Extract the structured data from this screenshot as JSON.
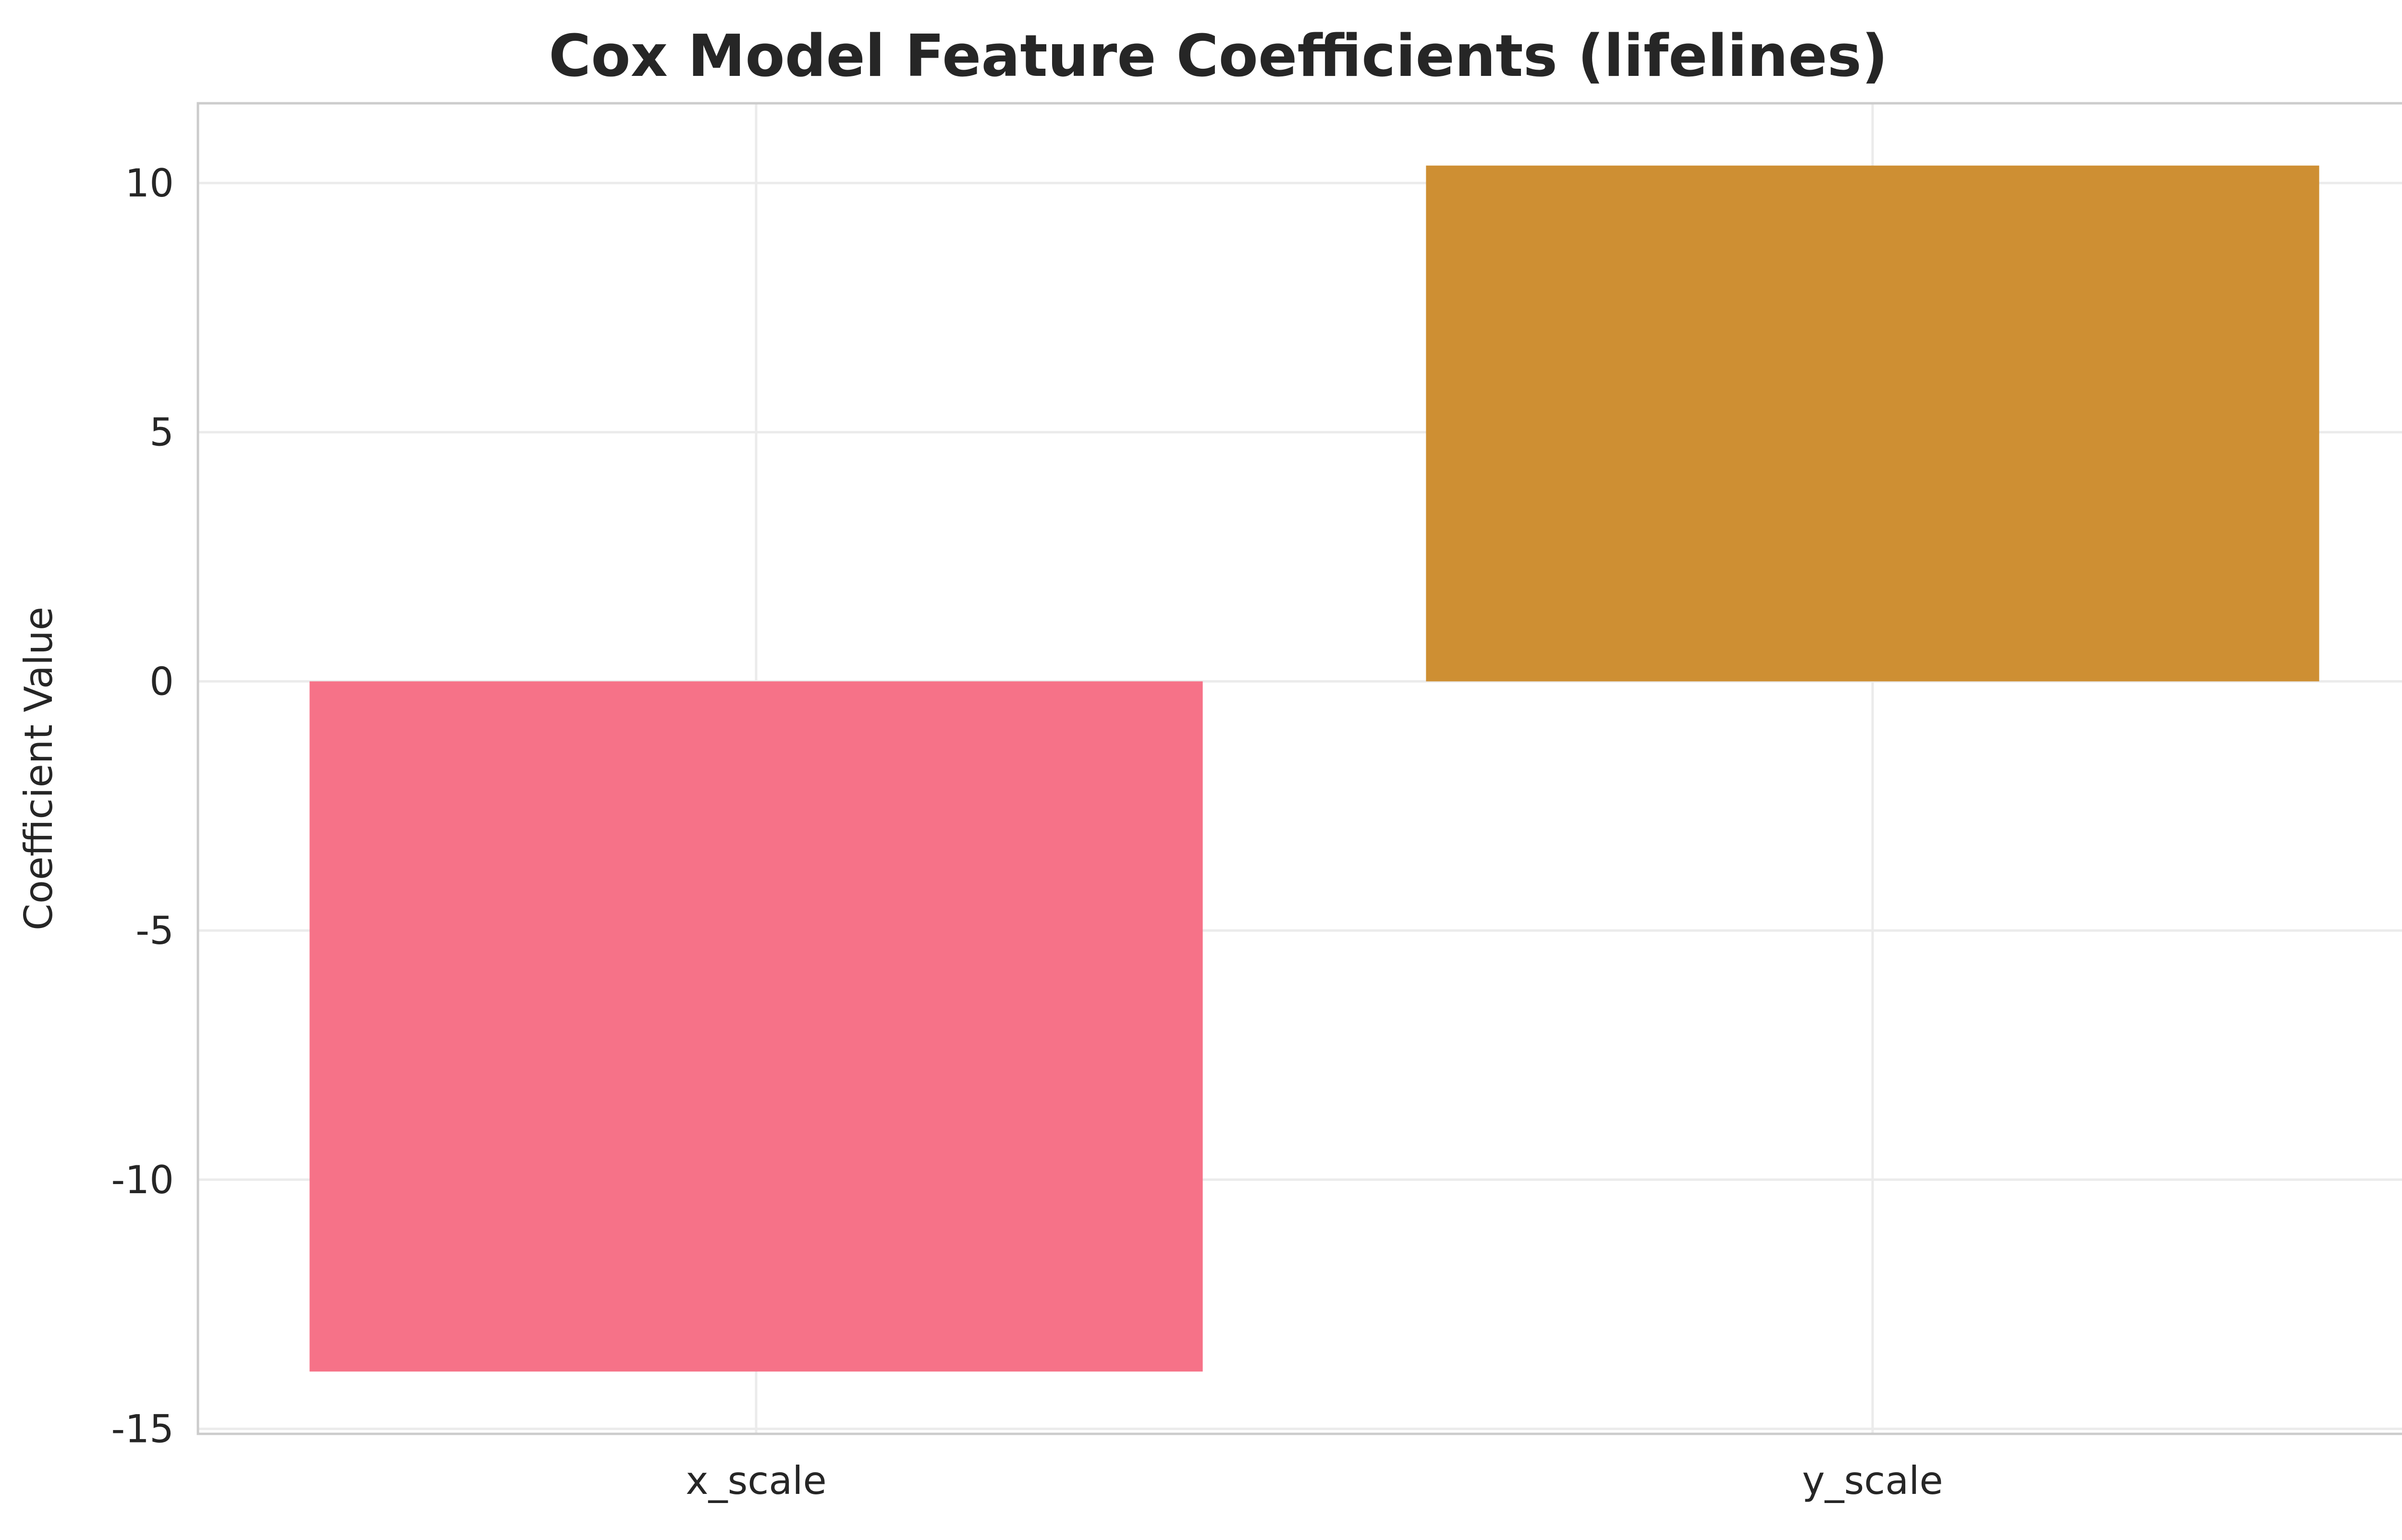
{
  "chart_data": {
    "type": "bar",
    "title": "Cox Model Feature Coefficients (lifelines)",
    "xlabel": "",
    "ylabel": "Coefficient Value",
    "categories": [
      "x_scale",
      "y_scale"
    ],
    "values": [
      -13.85,
      10.35
    ],
    "colors": [
      "#f67288",
      "#ce8f33"
    ],
    "ylim": [
      -15.1,
      11.6
    ],
    "yticks": [
      -15,
      -10,
      -5,
      0,
      5,
      10
    ],
    "ytick_labels": [
      "-15",
      "-10",
      "-5",
      "0",
      "5",
      "10"
    ],
    "grid": true,
    "grid_color": "#ebebeb",
    "spine_color": "#cccccc",
    "text_color": "#262626"
  }
}
